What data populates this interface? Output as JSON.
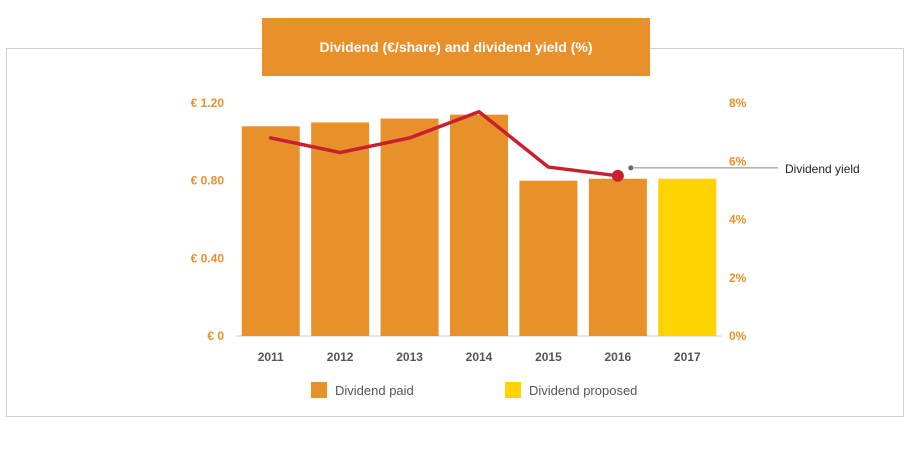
{
  "title": "Dividend (€/share) and dividend yield (%)",
  "colors": {
    "paid": "#e8902a",
    "proposed": "#ffd200",
    "line": "#c8202f",
    "axis": "#e8902a"
  },
  "chart_data": {
    "type": "bar",
    "categories": [
      "2011",
      "2012",
      "2013",
      "2014",
      "2015",
      "2016",
      "2017"
    ],
    "series": [
      {
        "name": "Dividend paid",
        "values": [
          1.08,
          1.1,
          1.12,
          1.14,
          0.8,
          0.81,
          null
        ]
      },
      {
        "name": "Dividend proposed",
        "values": [
          null,
          null,
          null,
          null,
          null,
          null,
          0.81
        ]
      }
    ],
    "line_series": {
      "name": "Dividend yield",
      "axis": "right",
      "values": [
        6.8,
        6.3,
        6.8,
        7.7,
        5.8,
        5.5,
        null
      ]
    },
    "y_left": {
      "ylim": [
        0,
        1.2
      ],
      "ticks": [
        "€ 0",
        "€ 0.40",
        "€ 0.80",
        "€ 1.20"
      ],
      "tick_values": [
        0,
        0.4,
        0.8,
        1.2
      ]
    },
    "y_right": {
      "ylim": [
        0,
        8
      ],
      "ticks": [
        "0%",
        "2%",
        "4%",
        "6%",
        "8%"
      ],
      "tick_values": [
        0,
        2,
        4,
        6,
        8
      ]
    },
    "annotation": "Dividend yield",
    "legend": [
      "Dividend paid",
      "Dividend proposed"
    ],
    "legend_position": "bottom",
    "grid": false
  }
}
